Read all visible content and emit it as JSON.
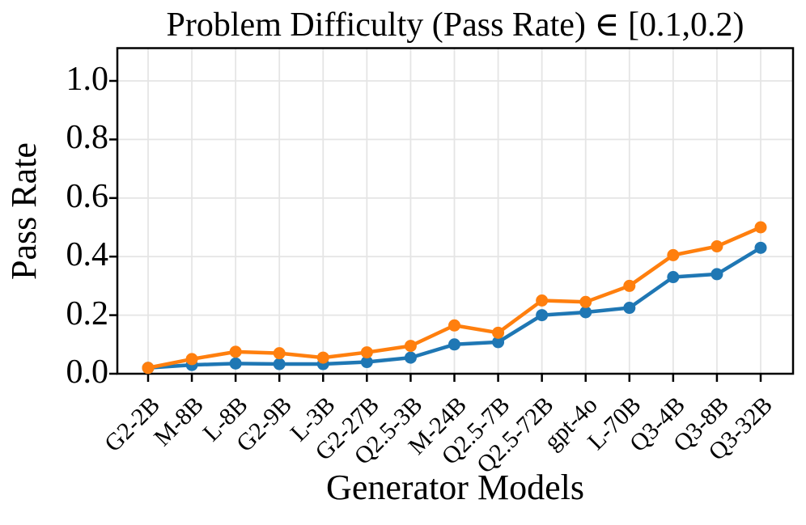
{
  "chart_data": {
    "type": "line",
    "title": "Problem Difficulty (Pass Rate) ∈ [0.1,0.2)",
    "xlabel": "Generator Models",
    "ylabel": "Pass Rate",
    "categories": [
      "G2-2B",
      "M-8B",
      "L-8B",
      "G2-9B",
      "L-3B",
      "G2-27B",
      "Q2.5-3B",
      "M-24B",
      "Q2.5-7B",
      "Q2.5-72B",
      "gpt-4o",
      "L-70B",
      "Q3-4B",
      "Q3-8B",
      "Q3-32B"
    ],
    "yticks": {
      "labels": [
        "0.0",
        "0.2",
        "0.4",
        "0.6",
        "0.8",
        "1.0"
      ],
      "values": [
        0.0,
        0.2,
        0.4,
        0.6,
        0.8,
        1.0
      ]
    },
    "ylim": [
      0.0,
      1.11
    ],
    "grid": true,
    "legend_position": "none",
    "colors": {
      "blue_series": "#1f77b4",
      "orange_series": "#ff7f0e",
      "gridline": "#e5e5e5",
      "axis": "#000000"
    },
    "series": [
      {
        "id": "blue",
        "color": "#1f77b4",
        "values": [
          0.02,
          0.03,
          0.035,
          0.033,
          0.033,
          0.04,
          0.055,
          0.1,
          0.108,
          0.2,
          0.21,
          0.225,
          0.33,
          0.34,
          0.43
        ]
      },
      {
        "id": "orange",
        "color": "#ff7f0e",
        "values": [
          0.02,
          0.05,
          0.075,
          0.07,
          0.055,
          0.073,
          0.095,
          0.165,
          0.14,
          0.25,
          0.245,
          0.3,
          0.405,
          0.435,
          0.5
        ]
      }
    ]
  }
}
